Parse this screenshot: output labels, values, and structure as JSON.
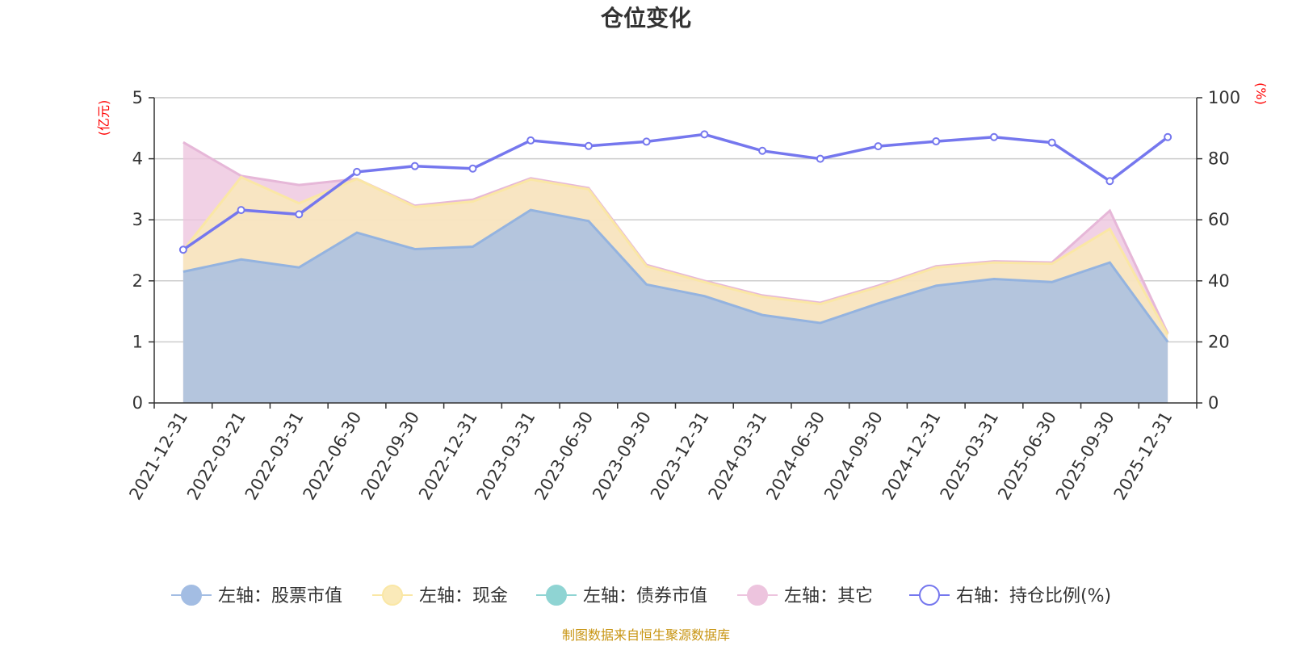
{
  "title": "仓位变化",
  "source_note": "制图数据来自恒生聚源数据库",
  "left_unit": "(亿元)",
  "right_unit": "(%)",
  "colors": {
    "stock": "#a3bde3",
    "stock_line": "#94b3df",
    "cash": "#faeab9",
    "cash_line": "#fae7a5",
    "bond": "#8fd4d3",
    "other": "#edc4de",
    "other_line": "#e6b7d8",
    "ratio": "#7577ee"
  },
  "chart_data": {
    "type": "area",
    "title": "仓位变化",
    "categories": [
      "2021-12-31",
      "2022-03-21",
      "2022-03-31",
      "2022-06-30",
      "2022-09-30",
      "2022-12-31",
      "2023-03-31",
      "2023-06-30",
      "2023-09-30",
      "2023-12-31",
      "2024-03-31",
      "2024-06-30",
      "2024-09-30",
      "2024-12-31",
      "2025-03-31",
      "2025-06-30",
      "2025-09-30",
      "2025-12-31"
    ],
    "left_axis": {
      "unit": "(亿元)",
      "ylim": [
        0,
        5
      ],
      "ticks": [
        0,
        1,
        2,
        3,
        4,
        5
      ]
    },
    "right_axis": {
      "unit": "(%)",
      "ylim": [
        0,
        100
      ],
      "ticks": [
        0,
        20,
        40,
        60,
        80,
        100
      ]
    },
    "series": [
      {
        "name": "左轴：股票市值",
        "axis": "left",
        "kind": "stacked-area",
        "values": [
          2.15,
          2.35,
          2.22,
          2.79,
          2.52,
          2.56,
          3.16,
          2.98,
          1.94,
          1.75,
          1.44,
          1.31,
          1.63,
          1.92,
          2.03,
          1.98,
          2.3,
          1.0
        ]
      },
      {
        "name": "左轴：现金",
        "axis": "left",
        "kind": "stacked-area",
        "values": [
          0.35,
          1.35,
          1.05,
          0.88,
          0.69,
          0.74,
          0.5,
          0.52,
          0.3,
          0.23,
          0.3,
          0.31,
          0.27,
          0.3,
          0.27,
          0.3,
          0.55,
          0.12
        ]
      },
      {
        "name": "左轴：债券市值",
        "axis": "left",
        "kind": "stacked-area",
        "values": [
          0,
          0,
          0,
          0,
          0,
          0,
          0,
          0,
          0,
          0,
          0,
          0,
          0,
          0,
          0,
          0,
          0,
          0
        ]
      },
      {
        "name": "左轴：其它",
        "axis": "left",
        "kind": "stacked-area",
        "values": [
          1.77,
          0.02,
          0.3,
          0.0,
          0.02,
          0.03,
          0.02,
          0.02,
          0.02,
          0.02,
          0.02,
          0.02,
          0.02,
          0.02,
          0.02,
          0.02,
          0.3,
          0.02
        ]
      },
      {
        "name": "右轴：持仓比例(%)",
        "axis": "right",
        "kind": "line",
        "values": [
          50.2,
          63.2,
          61.8,
          75.7,
          77.6,
          76.8,
          86.0,
          84.2,
          85.6,
          88.0,
          82.6,
          80.0,
          84.1,
          85.7,
          87.1,
          85.3,
          72.7,
          87.1
        ]
      }
    ]
  },
  "legend": [
    {
      "label": "左轴：股票市值",
      "icon": "circle-filled-blue"
    },
    {
      "label": "左轴：现金",
      "icon": "circle-filled-yellow"
    },
    {
      "label": "左轴：债券市值",
      "icon": "circle-filled-teal"
    },
    {
      "label": "左轴：其它",
      "icon": "circle-filled-pink"
    },
    {
      "label": "右轴：持仓比例(%)",
      "icon": "circle-hollow-purple"
    }
  ]
}
